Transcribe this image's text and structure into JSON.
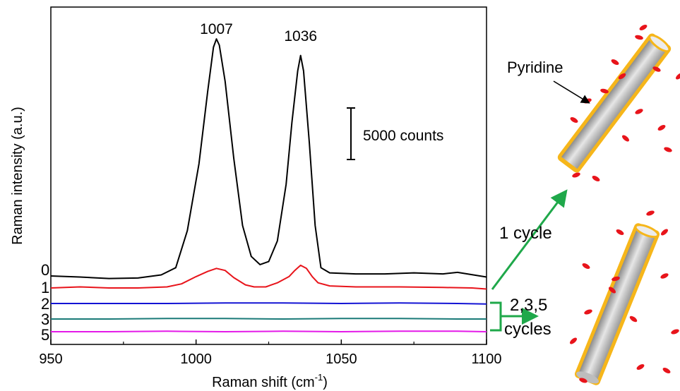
{
  "chart_data": {
    "type": "line",
    "xlabel": "Raman shift (cm",
    "xlabel_sup": "-1",
    "xlabel_close": ")",
    "ylabel": "Raman intensity (a.u.)",
    "xlim": [
      950,
      1100
    ],
    "xticks": [
      950,
      1000,
      1050,
      1100
    ],
    "xtick_labels": [
      "950",
      "1000",
      "1050",
      "1100"
    ],
    "yticks_shown": false,
    "grid": false,
    "scale_bar": {
      "label": "5000 counts",
      "counts": 5000
    },
    "peak_labels": [
      {
        "text": "1007",
        "x": 1007
      },
      {
        "text": "1036",
        "x": 1036
      }
    ],
    "series": [
      {
        "name": "0",
        "color": "#000000",
        "points": [
          [
            950,
            2600
          ],
          [
            960,
            2500
          ],
          [
            970,
            2350
          ],
          [
            980,
            2400
          ],
          [
            988,
            2700
          ],
          [
            993,
            3400
          ],
          [
            997,
            7000
          ],
          [
            1001,
            13500
          ],
          [
            1004,
            20500
          ],
          [
            1006,
            24800
          ],
          [
            1007,
            25600
          ],
          [
            1008,
            25000
          ],
          [
            1010,
            21500
          ],
          [
            1013,
            14000
          ],
          [
            1016,
            7500
          ],
          [
            1019,
            4500
          ],
          [
            1022,
            3700
          ],
          [
            1025,
            4000
          ],
          [
            1028,
            6000
          ],
          [
            1031,
            11500
          ],
          [
            1033,
            17500
          ],
          [
            1035,
            22500
          ],
          [
            1036,
            24000
          ],
          [
            1037,
            22500
          ],
          [
            1039,
            15500
          ],
          [
            1041,
            7500
          ],
          [
            1043,
            3400
          ],
          [
            1046,
            2900
          ],
          [
            1055,
            2800
          ],
          [
            1065,
            2800
          ],
          [
            1075,
            2900
          ],
          [
            1085,
            2800
          ],
          [
            1090,
            2950
          ],
          [
            1100,
            2500
          ]
        ]
      },
      {
        "name": "1",
        "color": "#e8141b",
        "points": [
          [
            950,
            2200
          ],
          [
            960,
            2300
          ],
          [
            970,
            2200
          ],
          [
            980,
            2200
          ],
          [
            990,
            2300
          ],
          [
            995,
            2600
          ],
          [
            1000,
            3300
          ],
          [
            1004,
            3800
          ],
          [
            1007,
            4100
          ],
          [
            1010,
            3900
          ],
          [
            1013,
            3200
          ],
          [
            1017,
            2500
          ],
          [
            1020,
            2300
          ],
          [
            1024,
            2300
          ],
          [
            1028,
            2700
          ],
          [
            1032,
            3300
          ],
          [
            1034,
            3900
          ],
          [
            1036,
            4400
          ],
          [
            1038,
            4100
          ],
          [
            1040,
            3300
          ],
          [
            1042,
            2700
          ],
          [
            1046,
            2400
          ],
          [
            1055,
            2300
          ],
          [
            1070,
            2300
          ],
          [
            1085,
            2250
          ],
          [
            1095,
            2200
          ],
          [
            1100,
            2100
          ]
        ]
      },
      {
        "name": "2",
        "color": "#1414d4",
        "points": [
          [
            950,
            2000
          ],
          [
            970,
            2000
          ],
          [
            990,
            2000
          ],
          [
            1010,
            2050
          ],
          [
            1030,
            2050
          ],
          [
            1050,
            2000
          ],
          [
            1070,
            2050
          ],
          [
            1090,
            2000
          ],
          [
            1100,
            1950
          ]
        ]
      },
      {
        "name": "3",
        "color": "#1a7a78",
        "points": [
          [
            950,
            2100
          ],
          [
            970,
            2100
          ],
          [
            990,
            2150
          ],
          [
            1010,
            2150
          ],
          [
            1030,
            2100
          ],
          [
            1050,
            2150
          ],
          [
            1070,
            2150
          ],
          [
            1090,
            2100
          ],
          [
            1100,
            2100
          ]
        ]
      },
      {
        "name": "5",
        "color": "#e419e8",
        "points": [
          [
            950,
            2000
          ],
          [
            970,
            2000
          ],
          [
            990,
            2050
          ],
          [
            1010,
            2000
          ],
          [
            1030,
            2050
          ],
          [
            1050,
            2000
          ],
          [
            1070,
            2050
          ],
          [
            1090,
            2050
          ],
          [
            1100,
            2000
          ]
        ]
      }
    ]
  },
  "schematic": {
    "pyridine_label": "Pyridine",
    "one_cycle_label": "1 cycle",
    "multi_cycle_label_1": "2,3,5",
    "multi_cycle_label_2": "cycles",
    "arrow_color": "#1fa84a",
    "shell_color": "#f6b61a",
    "molecule_color": "#e8141b"
  }
}
